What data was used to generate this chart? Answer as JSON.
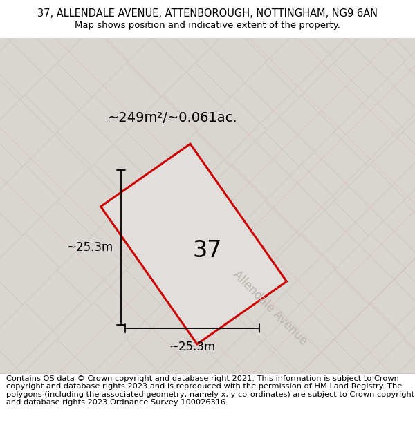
{
  "title": "37, ALLENDALE AVENUE, ATTENBOROUGH, NOTTINGHAM, NG9 6AN",
  "subtitle": "Map shows position and indicative extent of the property.",
  "footer": "Contains OS data © Crown copyright and database right 2021. This information is subject to Crown copyright and database rights 2023 and is reproduced with the permission of HM Land Registry. The polygons (including the associated geometry, namely x, y co-ordinates) are subject to Crown copyright and database rights 2023 Ordnance Survey 100026316.",
  "area_label": "~249m²/~0.061ac.",
  "width_label": "~25.3m",
  "height_label": "~25.3m",
  "number_label": "37",
  "map_bg": "#ede9e4",
  "tile_face": "#d9d5d0",
  "tile_edge": "#c8c4bf",
  "plot_fill": "#e2dedb",
  "plot_outline": "#cc0000",
  "grid_line_color": "#dbb0a8",
  "road_text_color": "#b8b0a8",
  "title_fontsize": 10.5,
  "subtitle_fontsize": 9.5,
  "footer_fontsize": 8.2,
  "area_fontsize": 14,
  "number_fontsize": 24,
  "dim_fontsize": 12,
  "road_fontsize": 12
}
